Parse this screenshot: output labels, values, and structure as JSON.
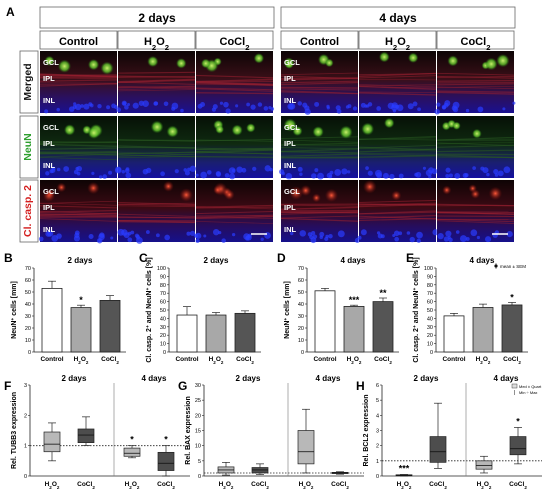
{
  "panel_a": {
    "letter": "A",
    "groups": [
      {
        "title": "2 days",
        "columns": [
          "Control",
          "H2O2",
          "CoCl2"
        ]
      },
      {
        "title": "4 days",
        "columns": [
          "Control",
          "H2O2",
          "CoCl2"
        ]
      }
    ],
    "rows": [
      {
        "label": "Merged",
        "color": "#111111"
      },
      {
        "label": "NeuN",
        "color": "#2e9e2e"
      },
      {
        "label": "Cl. casp. 2",
        "color": "#d42020"
      }
    ],
    "layer_labels": [
      "GCL",
      "IPL",
      "INL"
    ]
  },
  "chart_data": [
    {
      "panel": "B",
      "type": "bar",
      "title": "2 days",
      "ylabel": "NeuN+ cells [mm]",
      "ylim": [
        0,
        70
      ],
      "yticks": [
        0,
        10,
        20,
        30,
        40,
        50,
        60,
        70
      ],
      "categories": [
        "Control",
        "H2O2",
        "CoCl2"
      ],
      "values": [
        53,
        37,
        43
      ],
      "errors": [
        6,
        2,
        4
      ],
      "significance": [
        "",
        "*",
        ""
      ],
      "colors": [
        "#ffffff",
        "#a8a8a8",
        "#555555"
      ]
    },
    {
      "panel": "C",
      "type": "bar",
      "title": "2 days",
      "ylabel": "Cl. casp. 2+ and NeuN+ cells [%]",
      "ylim": [
        0,
        100
      ],
      "yticks": [
        0,
        10,
        20,
        30,
        40,
        50,
        60,
        70,
        80,
        90,
        100
      ],
      "categories": [
        "Control",
        "H2O2",
        "CoCl2"
      ],
      "values": [
        44,
        44,
        46
      ],
      "errors": [
        10,
        3,
        3
      ],
      "significance": [
        "",
        "",
        ""
      ],
      "colors": [
        "#ffffff",
        "#a8a8a8",
        "#555555"
      ]
    },
    {
      "panel": "D",
      "type": "bar",
      "title": "4 days",
      "ylabel": "NeuN+ cells [mm]",
      "ylim": [
        0,
        70
      ],
      "yticks": [
        0,
        10,
        20,
        30,
        40,
        50,
        60,
        70
      ],
      "categories": [
        "Control",
        "H2O2",
        "CoCl2"
      ],
      "values": [
        51,
        38,
        42
      ],
      "errors": [
        2,
        1,
        3
      ],
      "significance": [
        "",
        "***",
        "**"
      ],
      "colors": [
        "#ffffff",
        "#a8a8a8",
        "#555555"
      ]
    },
    {
      "panel": "E",
      "type": "bar",
      "title": "4 days",
      "ylabel": "Cl. casp. 2+ and NeuN+ cells [%]",
      "ylim": [
        0,
        100
      ],
      "yticks": [
        0,
        10,
        20,
        30,
        40,
        50,
        60,
        70,
        80,
        90,
        100
      ],
      "categories": [
        "Control",
        "H2O2",
        "CoCl2"
      ],
      "values": [
        43,
        53,
        56
      ],
      "errors": [
        3,
        4,
        3
      ],
      "significance": [
        "",
        "",
        "*"
      ],
      "colors": [
        "#ffffff",
        "#a8a8a8",
        "#555555"
      ],
      "legend": "mean ± SEM"
    },
    {
      "panel": "F",
      "type": "box",
      "ylabel": "Rel. TUBB3 expression",
      "ylim": [
        0,
        3
      ],
      "yticks": [
        0,
        1,
        2,
        3
      ],
      "groups": [
        {
          "title": "2 days",
          "boxes": [
            {
              "label": "H2O2",
              "min": 0.5,
              "q1": 0.8,
              "median": 1.05,
              "q3": 1.45,
              "max": 1.75,
              "color": "#b8b8b8",
              "sig": ""
            },
            {
              "label": "CoCl2",
              "min": 1.0,
              "q1": 1.1,
              "median": 1.35,
              "q3": 1.55,
              "max": 1.95,
              "color": "#4d4d4d",
              "sig": ""
            }
          ]
        },
        {
          "title": "4 days",
          "boxes": [
            {
              "label": "H2O2",
              "min": 0.6,
              "q1": 0.65,
              "median": 0.75,
              "q3": 0.92,
              "max": 1.0,
              "color": "#b8b8b8",
              "sig": "*"
            },
            {
              "label": "CoCl2",
              "min": 0.0,
              "q1": 0.18,
              "median": 0.42,
              "q3": 0.78,
              "max": 1.0,
              "color": "#4d4d4d",
              "sig": "*"
            }
          ]
        }
      ]
    },
    {
      "panel": "G",
      "type": "box",
      "ylabel": "Rel. BAX expression",
      "ylim": [
        0,
        30
      ],
      "yticks": [
        0,
        5,
        10,
        15,
        20,
        25,
        30
      ],
      "groups": [
        {
          "title": "2 days",
          "boxes": [
            {
              "label": "H2O2",
              "min": 0.3,
              "q1": 1.0,
              "median": 2.0,
              "q3": 3.0,
              "max": 4.5,
              "color": "#b8b8b8",
              "sig": ""
            },
            {
              "label": "CoCl2",
              "min": 0.5,
              "q1": 1.0,
              "median": 2.0,
              "q3": 2.8,
              "max": 4.0,
              "color": "#4d4d4d",
              "sig": ""
            }
          ]
        },
        {
          "title": "4 days",
          "boxes": [
            {
              "label": "H2O2",
              "min": 1.0,
              "q1": 4.0,
              "median": 8.0,
              "q3": 15.0,
              "max": 22.0,
              "color": "#b8b8b8",
              "sig": ""
            },
            {
              "label": "CoCl2",
              "min": 0.6,
              "q1": 0.8,
              "median": 1.0,
              "q3": 1.2,
              "max": 1.4,
              "color": "#4d4d4d",
              "sig": ""
            }
          ]
        }
      ]
    },
    {
      "panel": "H",
      "type": "box",
      "ylabel": "Rel. BCL2 expression",
      "ylim": [
        0,
        6
      ],
      "yticks": [
        0,
        1,
        2,
        3,
        4,
        5,
        6
      ],
      "legend": [
        "Med ± Quart",
        "Min ÷ Max"
      ],
      "groups": [
        {
          "title": "2 days",
          "boxes": [
            {
              "label": "H2O2",
              "min": 0.0,
              "q1": 0.02,
              "median": 0.05,
              "q3": 0.08,
              "max": 0.1,
              "color": "#b8b8b8",
              "sig": "***"
            },
            {
              "label": "CoCl2",
              "min": 0.5,
              "q1": 0.9,
              "median": 1.6,
              "q3": 2.6,
              "max": 4.8,
              "color": "#4d4d4d",
              "sig": ""
            }
          ]
        },
        {
          "title": "4 days",
          "boxes": [
            {
              "label": "H2O2",
              "min": 0.2,
              "q1": 0.45,
              "median": 0.7,
              "q3": 1.0,
              "max": 1.3,
              "color": "#b8b8b8",
              "sig": ""
            },
            {
              "label": "CoCl2",
              "min": 0.8,
              "q1": 1.4,
              "median": 1.8,
              "q3": 2.6,
              "max": 3.2,
              "color": "#4d4d4d",
              "sig": "*"
            }
          ]
        }
      ]
    }
  ]
}
